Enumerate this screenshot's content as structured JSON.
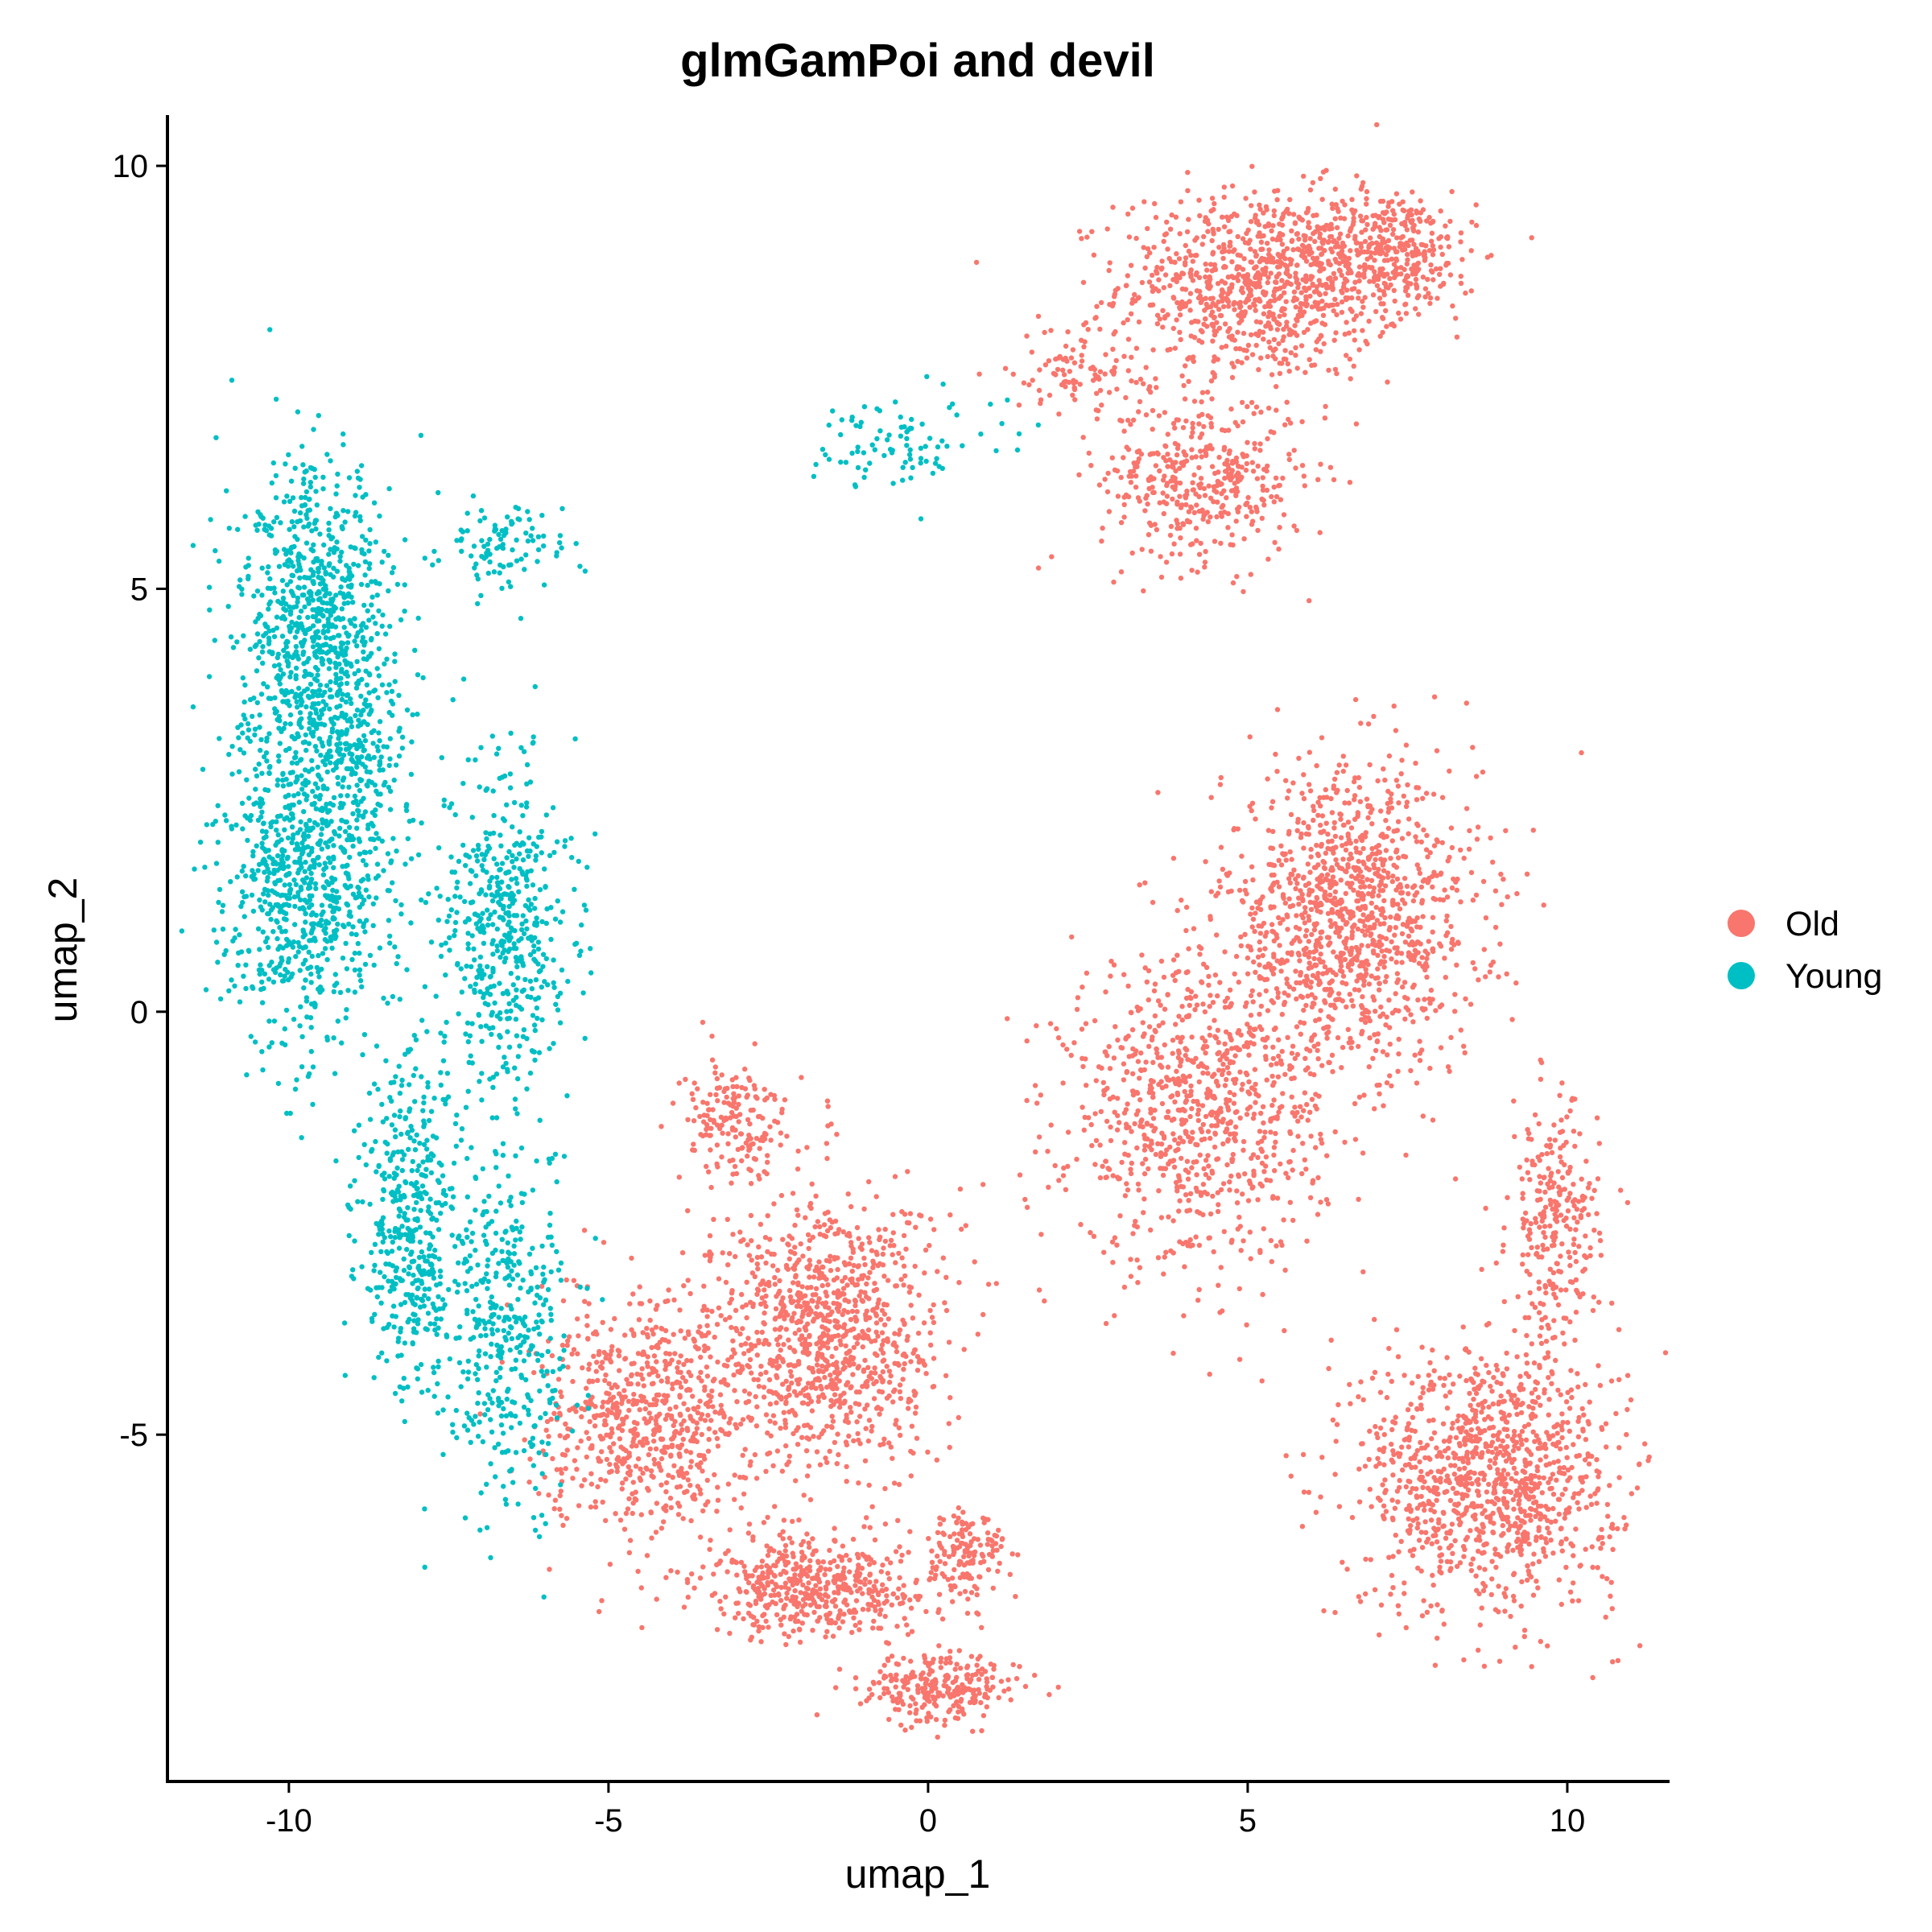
{
  "chart_data": {
    "type": "scatter",
    "title": "glmGamPoi and devil",
    "xlabel": "umap_1",
    "ylabel": "umap_2",
    "xlim": [
      -11.9,
      11.6
    ],
    "ylim": [
      -9.1,
      10.6
    ],
    "x_ticks": [
      -10,
      -5,
      0,
      5,
      10
    ],
    "x_tick_labels": [
      "-10",
      "-5",
      "0",
      "5",
      "10"
    ],
    "y_ticks": [
      -5,
      0,
      5,
      10
    ],
    "y_tick_labels": [
      "-5",
      "0",
      "5",
      "10"
    ],
    "grid": false,
    "legend_position": "right",
    "series": [
      {
        "name": "Old",
        "color": "#F8766D",
        "clusters": [
          {
            "cx": 5.2,
            "cy": 8.6,
            "sx": 1.1,
            "sy": 0.55,
            "n": 900
          },
          {
            "cx": 7.2,
            "cy": 9.0,
            "sx": 0.7,
            "sy": 0.35,
            "n": 350
          },
          {
            "cx": 4.3,
            "cy": 6.3,
            "sx": 0.8,
            "sy": 0.5,
            "n": 420
          },
          {
            "cx": 2.3,
            "cy": 7.6,
            "sx": 0.5,
            "sy": 0.25,
            "n": 90
          },
          {
            "cx": 6.6,
            "cy": 1.1,
            "sx": 1.0,
            "sy": 0.9,
            "n": 1200
          },
          {
            "cx": 4.2,
            "cy": -1.2,
            "sx": 1.0,
            "sy": 0.9,
            "n": 850
          },
          {
            "cx": 9.8,
            "cy": -2.5,
            "sx": 0.35,
            "sy": 0.7,
            "n": 260
          },
          {
            "cx": 8.8,
            "cy": -5.5,
            "sx": 1.0,
            "sy": 0.8,
            "n": 1100
          },
          {
            "cx": -1.6,
            "cy": -3.8,
            "sx": 0.9,
            "sy": 0.8,
            "n": 1000
          },
          {
            "cx": -3.0,
            "cy": -1.3,
            "sx": 0.45,
            "sy": 0.35,
            "n": 180
          },
          {
            "cx": -4.4,
            "cy": -4.8,
            "sx": 0.8,
            "sy": 0.7,
            "n": 700
          },
          {
            "cx": -1.7,
            "cy": -6.8,
            "sx": 0.9,
            "sy": 0.3,
            "n": 500
          },
          {
            "cx": 0.2,
            "cy": -8.0,
            "sx": 0.6,
            "sy": 0.2,
            "n": 260
          },
          {
            "cx": 0.6,
            "cy": -6.4,
            "sx": 0.3,
            "sy": 0.3,
            "n": 140
          }
        ]
      },
      {
        "name": "Young",
        "color": "#00BFC4",
        "clusters": [
          {
            "cx": -9.6,
            "cy": 4.6,
            "sx": 0.6,
            "sy": 0.9,
            "n": 750
          },
          {
            "cx": -9.8,
            "cy": 1.6,
            "sx": 0.6,
            "sy": 1.0,
            "n": 750
          },
          {
            "cx": -8.9,
            "cy": 3.0,
            "sx": 0.5,
            "sy": 1.0,
            "n": 300
          },
          {
            "cx": -6.6,
            "cy": 1.0,
            "sx": 0.5,
            "sy": 1.0,
            "n": 500
          },
          {
            "cx": -6.6,
            "cy": 5.5,
            "sx": 0.5,
            "sy": 0.25,
            "n": 100
          },
          {
            "cx": -8.1,
            "cy": -2.5,
            "sx": 0.4,
            "sy": 1.0,
            "n": 450
          },
          {
            "cx": -6.6,
            "cy": -3.8,
            "sx": 0.5,
            "sy": 1.0,
            "n": 400
          },
          {
            "cx": -0.5,
            "cy": 6.7,
            "sx": 0.8,
            "sy": 0.3,
            "n": 90
          }
        ]
      }
    ]
  }
}
